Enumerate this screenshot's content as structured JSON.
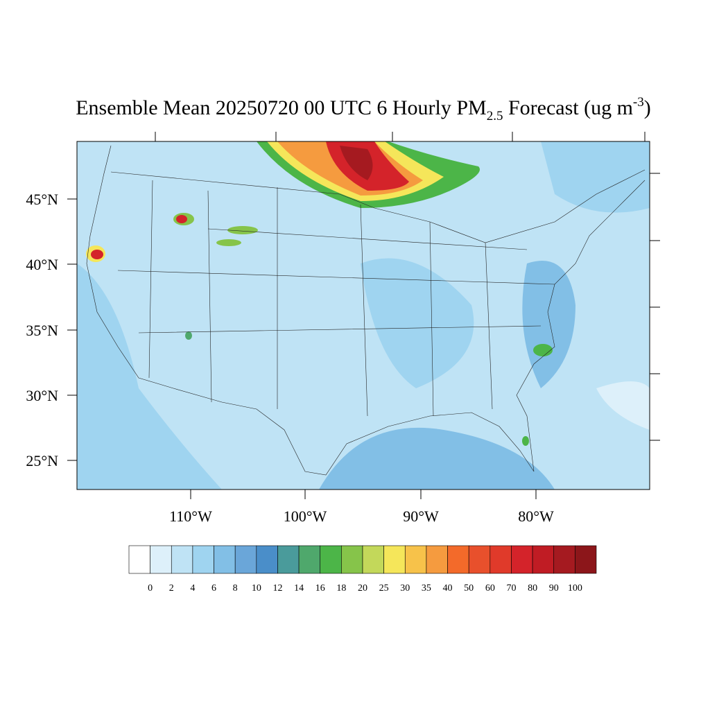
{
  "title": {
    "text": "Ensemble Mean 20250720 00 UTC 6 Hourly PM",
    "subscript": "2.5",
    "middle": " Forecast (ug m",
    "superscript": "-3",
    "end": ")"
  },
  "lat_labels": [
    "45°N",
    "40°N",
    "35°N",
    "30°N",
    "25°N"
  ],
  "lon_labels": [
    "110°W",
    "100°W",
    "90°W",
    "80°W"
  ],
  "colorbar": {
    "levels": [
      0,
      2,
      4,
      6,
      8,
      10,
      12,
      14,
      16,
      18,
      20,
      25,
      30,
      35,
      40,
      50,
      60,
      70,
      80,
      90,
      100
    ],
    "colors": [
      "#ffffff",
      "#ddf0fa",
      "#bfe3f5",
      "#9fd4f0",
      "#82bfe6",
      "#6aa6d9",
      "#4a8ec9",
      "#4a9b9b",
      "#4fa86c",
      "#4cb548",
      "#86c44a",
      "#c3d85a",
      "#f5e65a",
      "#f7c24a",
      "#f59b3f",
      "#f36a2a",
      "#e8502c",
      "#e03a2a",
      "#d4232a",
      "#c01c24",
      "#a51a20",
      "#8c161a"
    ]
  }
}
